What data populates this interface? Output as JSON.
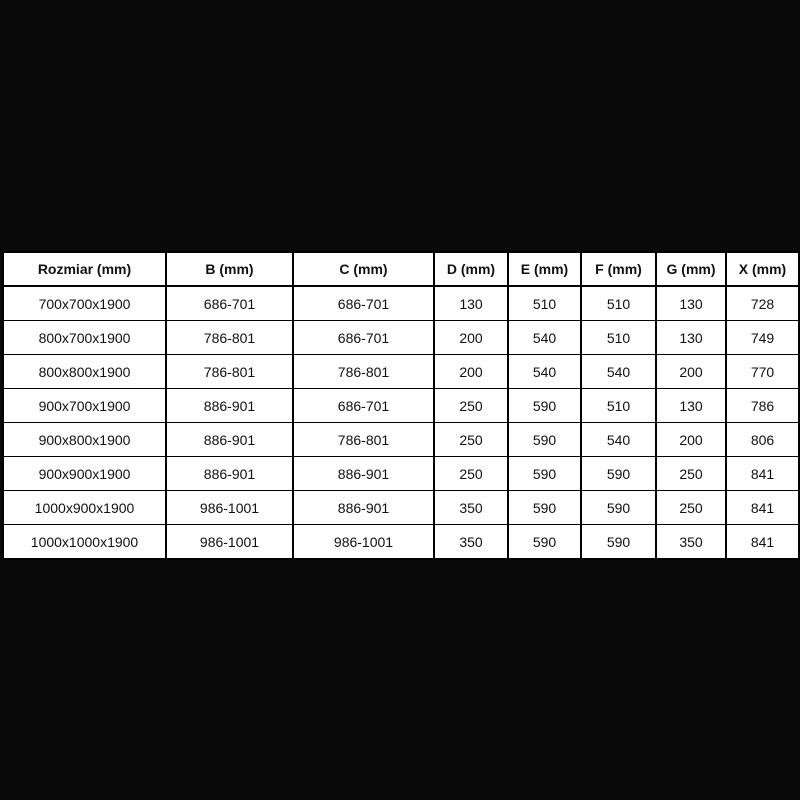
{
  "background_color": "#0a0a0a",
  "table": {
    "name": "shower-enclosure-dimensions",
    "headers": [
      "Rozmiar (mm)",
      "B (mm)",
      "C (mm)",
      "D (mm)",
      "E (mm)",
      "F (mm)",
      "G (mm)",
      "X (mm)"
    ],
    "rows": [
      [
        "700x700x1900",
        "686-701",
        "686-701",
        "130",
        "510",
        "510",
        "130",
        "728"
      ],
      [
        "800x700x1900",
        "786-801",
        "686-701",
        "200",
        "540",
        "510",
        "130",
        "749"
      ],
      [
        "800x800x1900",
        "786-801",
        "786-801",
        "200",
        "540",
        "540",
        "200",
        "770"
      ],
      [
        "900x700x1900",
        "886-901",
        "686-701",
        "250",
        "590",
        "510",
        "130",
        "786"
      ],
      [
        "900x800x1900",
        "886-901",
        "786-801",
        "250",
        "590",
        "540",
        "200",
        "806"
      ],
      [
        "900x900x1900",
        "886-901",
        "886-901",
        "250",
        "590",
        "590",
        "250",
        "841"
      ],
      [
        "1000x900x1900",
        "986-1001",
        "886-901",
        "350",
        "590",
        "590",
        "250",
        "841"
      ],
      [
        "1000x1000x1900",
        "986-1001",
        "986-1001",
        "350",
        "590",
        "590",
        "350",
        "841"
      ]
    ],
    "colors": {
      "cell_background": "#fefefe",
      "border": "#000000",
      "text": "#111111"
    }
  }
}
